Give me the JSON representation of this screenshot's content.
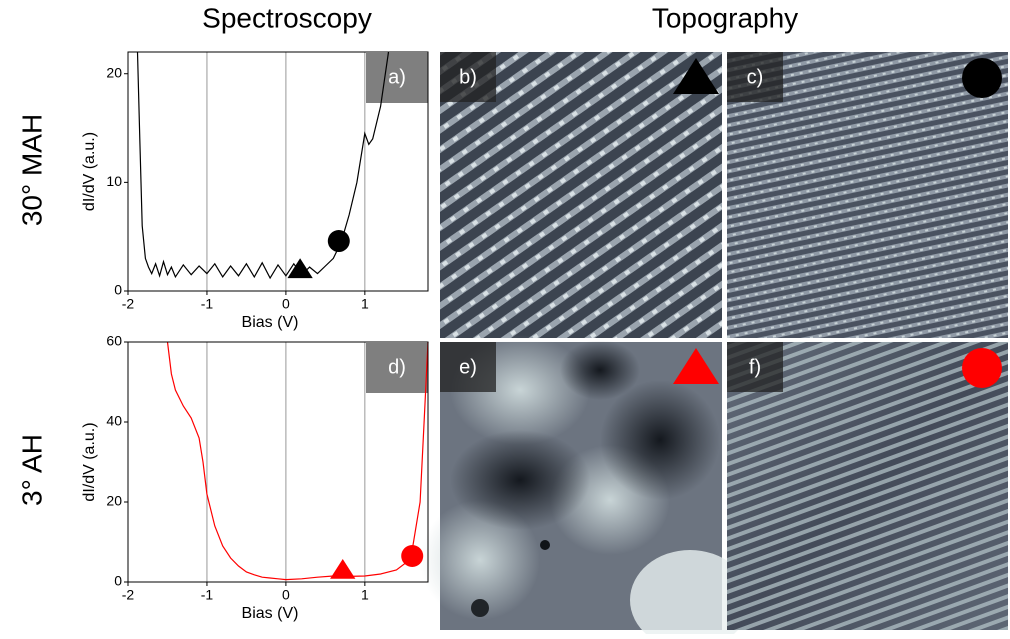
{
  "figure": {
    "column_titles": [
      "Spectroscopy",
      "Topography"
    ],
    "row_titles": [
      "30° MAH",
      "3° AH"
    ],
    "panels": [
      {
        "label": "b)",
        "marker": {
          "shape": "triangle",
          "color": "#000000"
        }
      },
      {
        "label": "c)",
        "marker": {
          "shape": "circle",
          "color": "#000000"
        }
      },
      {
        "label": "e)",
        "marker": {
          "shape": "triangle",
          "color": "#ff0000"
        }
      },
      {
        "label": "f)",
        "marker": {
          "shape": "circle",
          "color": "#ff0000"
        }
      }
    ]
  },
  "chart_data": [
    {
      "type": "line",
      "panel_label": "a)",
      "xlabel": "Bias (V)",
      "ylabel": "dI/dV (a.u.)",
      "xlim": [
        -2,
        1.8
      ],
      "ylim": [
        0,
        22
      ],
      "xticks": [
        -2,
        -1,
        0,
        1
      ],
      "yticks": [
        0,
        10,
        20
      ],
      "grid": "x",
      "x": [
        -1.88,
        -1.85,
        -1.82,
        -1.78,
        -1.74,
        -1.7,
        -1.65,
        -1.6,
        -1.55,
        -1.5,
        -1.45,
        -1.4,
        -1.3,
        -1.2,
        -1.1,
        -1.0,
        -0.9,
        -0.8,
        -0.7,
        -0.6,
        -0.5,
        -0.4,
        -0.3,
        -0.2,
        -0.1,
        0,
        0.1,
        0.2,
        0.3,
        0.4,
        0.5,
        0.6,
        0.7,
        0.8,
        0.9,
        1.0,
        1.05,
        1.1,
        1.2,
        1.3
      ],
      "series": [
        {
          "color": "#000000",
          "values": [
            22,
            14,
            6,
            3,
            2.2,
            1.6,
            2.5,
            1.4,
            2.7,
            1.5,
            2.2,
            1.3,
            2.4,
            1.5,
            2.3,
            1.6,
            2.5,
            1.3,
            2.3,
            1.4,
            2.5,
            1.3,
            2.6,
            1.2,
            2.4,
            1.4,
            2.5,
            1.5,
            2.2,
            1.6,
            2.3,
            3,
            4.5,
            7,
            10,
            14.5,
            13.5,
            14,
            17,
            22
          ]
        }
      ],
      "markers": [
        {
          "shape": "triangle",
          "color": "#000000",
          "x": 0.18,
          "y": 2
        },
        {
          "shape": "circle",
          "color": "#000000",
          "x": 0.67,
          "y": 4.6
        }
      ]
    },
    {
      "type": "line",
      "panel_label": "d)",
      "xlabel": "Bias (V)",
      "ylabel": "dI/dV (a.u.)",
      "xlim": [
        -2,
        1.8
      ],
      "ylim": [
        0,
        60
      ],
      "xticks": [
        -2,
        -1,
        0,
        1
      ],
      "yticks": [
        0,
        20,
        40,
        60
      ],
      "grid": "x",
      "x": [
        -1.5,
        -1.45,
        -1.4,
        -1.3,
        -1.2,
        -1.1,
        -1.05,
        -1.0,
        -0.9,
        -0.8,
        -0.7,
        -0.6,
        -0.5,
        -0.4,
        -0.3,
        -0.2,
        -0.1,
        0,
        0.2,
        0.4,
        0.6,
        0.8,
        1.0,
        1.2,
        1.4,
        1.5,
        1.6,
        1.7,
        1.75,
        1.8
      ],
      "series": [
        {
          "color": "#ff0000",
          "values": [
            60,
            52,
            48,
            44,
            41,
            36,
            30,
            22,
            14,
            9,
            6,
            4,
            2.5,
            1.8,
            1.2,
            1.0,
            0.8,
            0.6,
            0.8,
            1.2,
            1.5,
            1.4,
            1.5,
            2,
            3,
            4.5,
            8,
            20,
            40,
            60
          ]
        }
      ],
      "markers": [
        {
          "shape": "triangle",
          "color": "#ff0000",
          "x": 0.72,
          "y": 3
        },
        {
          "shape": "circle",
          "color": "#ff0000",
          "x": 1.6,
          "y": 6.5
        }
      ]
    }
  ]
}
